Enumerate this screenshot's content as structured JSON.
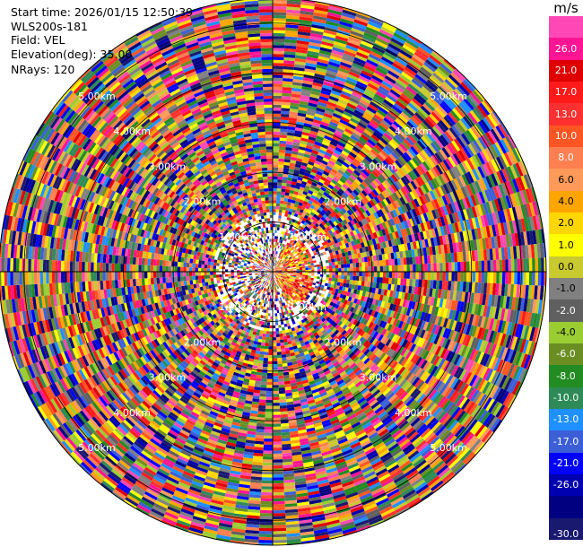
{
  "info": {
    "start_time": "Start time: 2026/01/15 12:50:39",
    "instrument": "WLS200s-181",
    "field": "Field: VEL",
    "elevation": "Elevation(deg): 35.00",
    "nrays": "NRays: 120"
  },
  "colorbar": {
    "unit": "m/s",
    "ticks": [
      "26.0",
      "21.0",
      "17.0",
      "13.0",
      "10.0",
      "8.0",
      "6.0",
      "4.0",
      "2.0",
      "1.0",
      "0.0",
      "-1.0",
      "-2.0",
      "-4.0",
      "-6.0",
      "-8.0",
      "-10.0",
      "-13.0",
      "-17.0",
      "-21.0",
      "-26.0",
      "-30.0"
    ],
    "colors": [
      "#ff47b5",
      "#ff1493",
      "#e00000",
      "#ff1a1a",
      "#ff3030",
      "#ff5522",
      "#ff7f50",
      "#ff9a5a",
      "#ffa500",
      "#ffd700",
      "#ffff00",
      "#c9c930",
      "#808080",
      "#606060",
      "#9acd32",
      "#6b8e23",
      "#228b22",
      "#2e8b57",
      "#1e90ff",
      "#3c5fd8",
      "#0000ff",
      "#0000b0",
      "#000080",
      "#191970"
    ]
  },
  "chart_data": {
    "type": "heatmap",
    "title": "",
    "field": "VEL",
    "units": "m/s",
    "nrays": 120,
    "elevation_deg": 35.0,
    "range_ring_labels": [
      "1.00km",
      "2.00km",
      "3.00km",
      "4.00km",
      "5.00km"
    ],
    "range_rings_km": [
      1,
      2,
      3,
      4,
      5
    ],
    "max_range_km": 5.5
  }
}
